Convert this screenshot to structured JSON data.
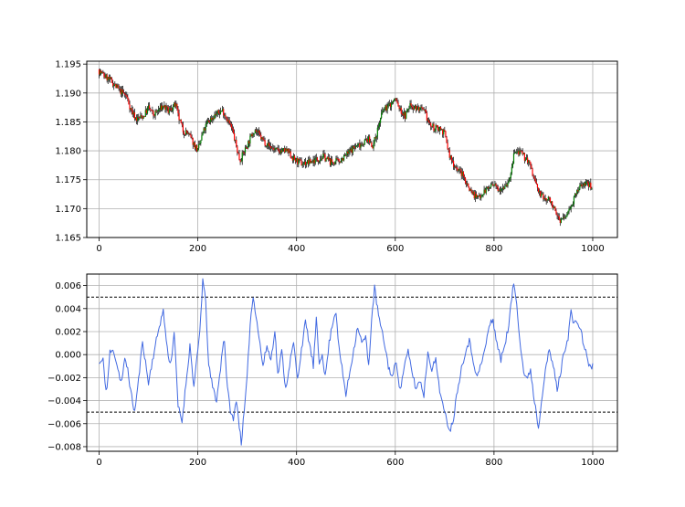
{
  "colors": {
    "up_candle": "#008000",
    "down_candle": "#ff0000",
    "wick": "#000000",
    "oscillator_line": "#4169e1",
    "threshold_line": "#000000",
    "grid": "#b0b0b0"
  },
  "chart_data": [
    {
      "type": "candlestick",
      "title": "",
      "xlabel": "",
      "ylabel": "",
      "xlim": [
        -25,
        1050
      ],
      "ylim": [
        1.165,
        1.1955
      ],
      "x_ticks": [
        0,
        200,
        400,
        600,
        800,
        1000
      ],
      "y_ticks": [
        1.165,
        1.17,
        1.175,
        1.18,
        1.185,
        1.19,
        1.195
      ],
      "x_tick_labels": [
        "0",
        "200",
        "400",
        "600",
        "800",
        "1000"
      ],
      "y_tick_labels": [
        "1.165",
        "1.170",
        "1.175",
        "1.180",
        "1.185",
        "1.190",
        "1.195"
      ],
      "grid": true,
      "n_candles": 1000,
      "close_path": [
        [
          0,
          1.1938
        ],
        [
          10,
          1.193
        ],
        [
          25,
          1.192
        ],
        [
          40,
          1.1905
        ],
        [
          55,
          1.1895
        ],
        [
          65,
          1.187
        ],
        [
          75,
          1.1855
        ],
        [
          90,
          1.186
        ],
        [
          100,
          1.1875
        ],
        [
          110,
          1.1862
        ],
        [
          120,
          1.187
        ],
        [
          130,
          1.1878
        ],
        [
          140,
          1.1868
        ],
        [
          155,
          1.188
        ],
        [
          160,
          1.186
        ],
        [
          170,
          1.1835
        ],
        [
          180,
          1.183
        ],
        [
          190,
          1.1815
        ],
        [
          200,
          1.18
        ],
        [
          210,
          1.183
        ],
        [
          220,
          1.185
        ],
        [
          235,
          1.1862
        ],
        [
          250,
          1.187
        ],
        [
          260,
          1.1855
        ],
        [
          270,
          1.1835
        ],
        [
          285,
          1.1783
        ],
        [
          300,
          1.181
        ],
        [
          315,
          1.1838
        ],
        [
          330,
          1.182
        ],
        [
          345,
          1.1808
        ],
        [
          360,
          1.18
        ],
        [
          380,
          1.18
        ],
        [
          395,
          1.1785
        ],
        [
          410,
          1.1778
        ],
        [
          425,
          1.178
        ],
        [
          440,
          1.1785
        ],
        [
          455,
          1.179
        ],
        [
          470,
          1.178
        ],
        [
          485,
          1.1782
        ],
        [
          500,
          1.1792
        ],
        [
          515,
          1.1805
        ],
        [
          530,
          1.1812
        ],
        [
          545,
          1.182
        ],
        [
          555,
          1.1808
        ],
        [
          565,
          1.184
        ],
        [
          575,
          1.187
        ],
        [
          590,
          1.188
        ],
        [
          600,
          1.189
        ],
        [
          610,
          1.187
        ],
        [
          620,
          1.186
        ],
        [
          630,
          1.188
        ],
        [
          640,
          1.1875
        ],
        [
          650,
          1.1872
        ],
        [
          660,
          1.1865
        ],
        [
          670,
          1.1845
        ],
        [
          680,
          1.1838
        ],
        [
          690,
          1.184
        ],
        [
          700,
          1.183
        ],
        [
          710,
          1.179
        ],
        [
          720,
          1.1775
        ],
        [
          735,
          1.176
        ],
        [
          750,
          1.1735
        ],
        [
          765,
          1.1718
        ],
        [
          780,
          1.173
        ],
        [
          795,
          1.174
        ],
        [
          810,
          1.1735
        ],
        [
          825,
          1.1742
        ],
        [
          835,
          1.176
        ],
        [
          840,
          1.1795
        ],
        [
          850,
          1.1798
        ],
        [
          860,
          1.179
        ],
        [
          870,
          1.1782
        ],
        [
          880,
          1.1755
        ],
        [
          890,
          1.173
        ],
        [
          900,
          1.1718
        ],
        [
          915,
          1.1715
        ],
        [
          925,
          1.169
        ],
        [
          935,
          1.168
        ],
        [
          945,
          1.1685
        ],
        [
          955,
          1.1705
        ],
        [
          965,
          1.1722
        ],
        [
          975,
          1.174
        ],
        [
          985,
          1.1745
        ],
        [
          995,
          1.174
        ],
        [
          1000,
          1.1738
        ]
      ]
    },
    {
      "type": "line",
      "title": "",
      "xlabel": "",
      "ylabel": "",
      "xlim": [
        -25,
        1050
      ],
      "ylim": [
        -0.0084,
        0.007
      ],
      "x_ticks": [
        0,
        200,
        400,
        600,
        800,
        1000
      ],
      "y_ticks": [
        -0.008,
        -0.006,
        -0.004,
        -0.002,
        0.0,
        0.002,
        0.004,
        0.006
      ],
      "x_tick_labels": [
        "0",
        "200",
        "400",
        "600",
        "800",
        "1000"
      ],
      "y_tick_labels": [
        "−0.008",
        "−0.006",
        "−0.004",
        "−0.002",
        "0.000",
        "0.002",
        "0.004",
        "0.006"
      ],
      "grid": true,
      "thresholds": [
        0.005,
        -0.005
      ],
      "series": [
        {
          "points": [
            [
              0,
              -0.0008
            ],
            [
              8,
              -0.0005
            ],
            [
              15,
              -0.0035
            ],
            [
              22,
              0.0002
            ],
            [
              30,
              0.0003
            ],
            [
              38,
              -0.0012
            ],
            [
              45,
              -0.0025
            ],
            [
              52,
              -0.0005
            ],
            [
              58,
              -0.0012
            ],
            [
              65,
              -0.0035
            ],
            [
              72,
              -0.005
            ],
            [
              80,
              -0.0022
            ],
            [
              88,
              0.0012
            ],
            [
              95,
              -0.001
            ],
            [
              100,
              -0.0025
            ],
            [
              108,
              -0.0005
            ],
            [
              115,
              0.001
            ],
            [
              122,
              0.0025
            ],
            [
              130,
              0.0038
            ],
            [
              138,
              0.0005
            ],
            [
              145,
              -0.001
            ],
            [
              152,
              0.002
            ],
            [
              160,
              -0.0045
            ],
            [
              168,
              -0.0058
            ],
            [
              176,
              -0.0025
            ],
            [
              184,
              0.0008
            ],
            [
              192,
              -0.0028
            ],
            [
              198,
              -0.0005
            ],
            [
              204,
              0.002
            ],
            [
              210,
              0.0065
            ],
            [
              216,
              0.0045
            ],
            [
              222,
              -0.001
            ],
            [
              230,
              -0.0028
            ],
            [
              238,
              -0.004
            ],
            [
              246,
              -0.0012
            ],
            [
              253,
              0.0018
            ],
            [
              260,
              -0.003
            ],
            [
              266,
              -0.0048
            ],
            [
              272,
              -0.0058
            ],
            [
              278,
              -0.0038
            ],
            [
              284,
              -0.0062
            ],
            [
              288,
              -0.0076
            ],
            [
              294,
              -0.005
            ],
            [
              300,
              -0.002
            ],
            [
              306,
              0.0028
            ],
            [
              312,
              0.005
            ],
            [
              318,
              0.0035
            ],
            [
              324,
              0.0015
            ],
            [
              332,
              -0.001
            ],
            [
              340,
              0.0008
            ],
            [
              348,
              -0.0005
            ],
            [
              356,
              0.0022
            ],
            [
              362,
              -0.0018
            ],
            [
              370,
              0.0003
            ],
            [
              378,
              -0.003
            ],
            [
              386,
              -0.0008
            ],
            [
              394,
              0.001
            ],
            [
              402,
              -0.0022
            ],
            [
              410,
              0.0005
            ],
            [
              418,
              0.0028
            ],
            [
              426,
              0.001
            ],
            [
              434,
              -0.001
            ],
            [
              440,
              0.003
            ],
            [
              446,
              -0.0008
            ],
            [
              452,
              0.0002
            ],
            [
              458,
              -0.002
            ],
            [
              466,
              0.001
            ],
            [
              474,
              0.003
            ],
            [
              480,
              0.0038
            ],
            [
              486,
              0.0005
            ],
            [
              492,
              -0.0012
            ],
            [
              500,
              -0.0035
            ],
            [
              508,
              -0.0015
            ],
            [
              516,
              0.0005
            ],
            [
              524,
              0.0025
            ],
            [
              532,
              0.001
            ],
            [
              540,
              0.0015
            ],
            [
              546,
              -0.001
            ],
            [
              552,
              0.003
            ],
            [
              558,
              0.0058
            ],
            [
              564,
              0.004
            ],
            [
              570,
              0.0025
            ],
            [
              578,
              0.001
            ],
            [
              586,
              -0.001
            ],
            [
              594,
              -0.002
            ],
            [
              602,
              -0.0005
            ],
            [
              610,
              -0.0032
            ],
            [
              618,
              -0.001
            ],
            [
              626,
              0.0002
            ],
            [
              634,
              -0.0015
            ],
            [
              642,
              -0.003
            ],
            [
              650,
              -0.0022
            ],
            [
              658,
              -0.0035
            ],
            [
              666,
              0.0002
            ],
            [
              674,
              -0.0012
            ],
            [
              682,
              -0.0005
            ],
            [
              690,
              -0.003
            ],
            [
              698,
              -0.0048
            ],
            [
              706,
              -0.006
            ],
            [
              712,
              -0.0065
            ],
            [
              718,
              -0.0055
            ],
            [
              726,
              -0.003
            ],
            [
              734,
              -0.0012
            ],
            [
              742,
              0.0003
            ],
            [
              750,
              0.0012
            ],
            [
              758,
              -0.0005
            ],
            [
              766,
              -0.002
            ],
            [
              774,
              -0.0008
            ],
            [
              782,
              0.0005
            ],
            [
              790,
              0.0025
            ],
            [
              798,
              0.003
            ],
            [
              806,
              0.001
            ],
            [
              814,
              -0.0005
            ],
            [
              822,
              0.001
            ],
            [
              830,
              0.0025
            ],
            [
              836,
              0.005
            ],
            [
              840,
              0.0062
            ],
            [
              846,
              0.0045
            ],
            [
              852,
              0.0015
            ],
            [
              860,
              -0.0015
            ],
            [
              868,
              -0.0022
            ],
            [
              874,
              -0.0012
            ],
            [
              880,
              -0.0035
            ],
            [
              886,
              -0.005
            ],
            [
              890,
              -0.0065
            ],
            [
              896,
              -0.004
            ],
            [
              904,
              -0.0012
            ],
            [
              912,
              0.0003
            ],
            [
              920,
              -0.001
            ],
            [
              928,
              -0.003
            ],
            [
              934,
              -0.0018
            ],
            [
              942,
              0.0003
            ],
            [
              950,
              0.0015
            ],
            [
              956,
              0.0038
            ],
            [
              962,
              0.0025
            ],
            [
              968,
              0.003
            ],
            [
              976,
              0.002
            ],
            [
              984,
              0.0005
            ],
            [
              992,
              -0.0008
            ],
            [
              998,
              -0.0012
            ],
            [
              1000,
              -0.001
            ]
          ]
        }
      ]
    }
  ]
}
